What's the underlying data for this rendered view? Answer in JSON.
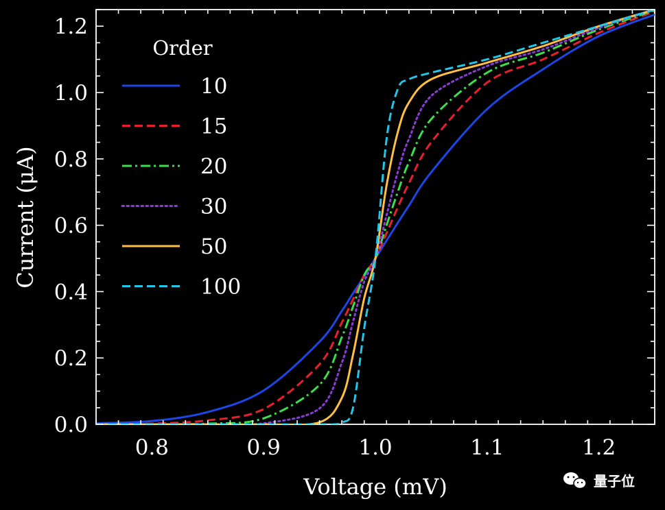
{
  "chart_data": {
    "type": "line",
    "xlabel": "Voltage (mV)",
    "ylabel": "Current (μA)",
    "xlim": [
      0.75,
      1.25
    ],
    "ylim": [
      0.0,
      1.25
    ],
    "xticks": [
      "0.8",
      "0.9",
      "1.0",
      "1.1",
      "1.2"
    ],
    "yticks": [
      "0.0",
      "0.2",
      "0.4",
      "0.6",
      "0.8",
      "1.0",
      "1.2"
    ],
    "grid": false,
    "legend": {
      "title": "Order",
      "placement": "top-left"
    },
    "x": [
      0.75,
      0.8,
      0.85,
      0.9,
      0.95,
      0.97,
      0.98,
      0.99,
      1.0,
      1.01,
      1.02,
      1.03,
      1.05,
      1.1,
      1.15,
      1.2,
      1.25
    ],
    "series": [
      {
        "name": "10",
        "color": "#1c46e6",
        "dash": "solid",
        "values": [
          0.003,
          0.01,
          0.037,
          0.102,
          0.249,
          0.342,
          0.395,
          0.446,
          0.5,
          0.554,
          0.607,
          0.659,
          0.76,
          0.95,
          1.07,
          1.17,
          1.235
        ]
      },
      {
        "name": "15",
        "color": "#e8202e",
        "dash": "dashed",
        "values": [
          0.0,
          0.002,
          0.012,
          0.046,
          0.181,
          0.307,
          0.377,
          0.45,
          0.5,
          0.576,
          0.654,
          0.726,
          0.85,
          1.03,
          1.1,
          1.18,
          1.245
        ]
      },
      {
        "name": "20",
        "color": "#3adf4a",
        "dash": "dashdot",
        "values": [
          0.0,
          0.0,
          0.002,
          0.018,
          0.119,
          0.263,
          0.355,
          0.45,
          0.5,
          0.6,
          0.7,
          0.79,
          0.92,
          1.06,
          1.12,
          1.19,
          1.248
        ]
      },
      {
        "name": "30",
        "color": "#8b3ed6",
        "dash": "dotted",
        "values": [
          0.0,
          0.0,
          0.0,
          0.003,
          0.048,
          0.186,
          0.31,
          0.43,
          0.5,
          0.63,
          0.76,
          0.86,
          0.99,
          1.08,
          1.13,
          1.195,
          1.25
        ]
      },
      {
        "name": "50",
        "color": "#ffbf42",
        "dash": "solid",
        "values": [
          0.0,
          0.0,
          0.0,
          0.0,
          0.006,
          0.08,
          0.21,
          0.38,
          0.5,
          0.72,
          0.88,
          0.97,
          1.04,
          1.09,
          1.14,
          1.2,
          1.25
        ]
      },
      {
        "name": "100",
        "color": "#22c7e8",
        "dash": "dashed",
        "values": [
          0.0,
          0.0,
          0.0,
          0.0,
          0.0,
          0.005,
          0.05,
          0.29,
          0.5,
          0.86,
          1.01,
          1.04,
          1.06,
          1.1,
          1.15,
          1.2,
          1.25
        ]
      }
    ]
  },
  "watermark": {
    "text": "量子位",
    "icon": "wechat-icon"
  }
}
